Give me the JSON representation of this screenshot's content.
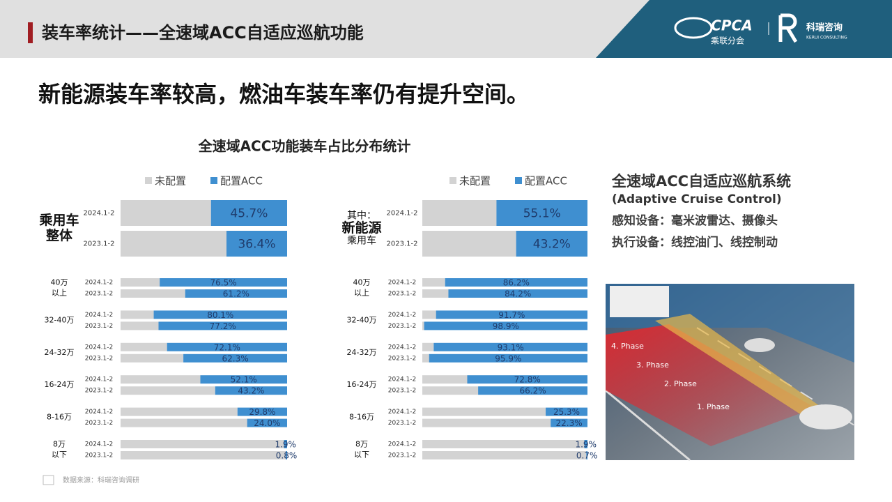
{
  "header": {
    "title": "装车率统计——全速域ACC自适应巡航功能",
    "logo_cpca": "CPCA",
    "logo_cpca_cn": "乘联分会",
    "logo_kerui": "科瑞咨询",
    "logo_kerui_en": "KERUI CONSULTING"
  },
  "headline": "新能源装车率较高，燃油车装车率仍有提升空间。",
  "chart_section_title": "全速域ACC功能装车占比分布统计",
  "chart_data": [
    {
      "type": "bar",
      "orientation": "horizontal",
      "stacked": true,
      "groups": [
        [
          "乘用车",
          "整体"
        ],
        [
          "40万",
          "以上"
        ],
        [
          "32-40万"
        ],
        [
          "24-32万"
        ],
        [
          "16-24万"
        ],
        [
          "8-16万"
        ],
        [
          "8万",
          "以下"
        ]
      ],
      "categories": [
        "2024.1-2",
        "2023.1-2",
        "2024.1-2",
        "2023.1-2",
        "2024.1-2",
        "2023.1-2",
        "2024.1-2",
        "2023.1-2",
        "2024.1-2",
        "2023.1-2",
        "2024.1-2",
        "2023.1-2",
        "2024.1-2",
        "2023.1-2"
      ],
      "series": [
        {
          "name": "未配置",
          "color": "#d3d3d3",
          "values": [
            54.3,
            63.6,
            23.5,
            38.8,
            19.9,
            22.8,
            27.9,
            37.7,
            47.9,
            56.8,
            70.2,
            76.0,
            98.1,
            99.2
          ]
        },
        {
          "name": "配置ACC",
          "color": "#3f8fd0",
          "values": [
            45.7,
            36.4,
            76.5,
            61.2,
            80.1,
            77.2,
            72.1,
            62.3,
            52.1,
            43.2,
            29.8,
            24.0,
            1.9,
            0.8
          ],
          "value_labels": [
            "45.7%",
            "36.4%",
            "76.5%",
            "61.2%",
            "80.1%",
            "77.2%",
            "72.1%",
            "62.3%",
            "52.1%",
            "43.2%",
            "29.8%",
            "24.0%",
            "1.9%",
            "0.8%"
          ]
        }
      ],
      "xlim": [
        0,
        100
      ]
    },
    {
      "type": "bar",
      "orientation": "horizontal",
      "stacked": true,
      "groups": [
        [
          "其中：",
          "新能源",
          "乘用车"
        ],
        [
          "40万",
          "以上"
        ],
        [
          "32-40万"
        ],
        [
          "24-32万"
        ],
        [
          "16-24万"
        ],
        [
          "8-16万"
        ],
        [
          "8万",
          "以下"
        ]
      ],
      "categories": [
        "2024.1-2",
        "2023.1-2",
        "2024.1-2",
        "2023.1-2",
        "2024.1-2",
        "2023.1-2",
        "2024.1-2",
        "2023.1-2",
        "2024.1-2",
        "2023.1-2",
        "2024.1-2",
        "2023.1-2",
        "2024.1-2",
        "2023.1-2"
      ],
      "series": [
        {
          "name": "未配置",
          "color": "#d3d3d3",
          "values": [
            44.9,
            56.8,
            13.8,
            15.8,
            8.3,
            1.1,
            6.9,
            4.1,
            27.2,
            33.8,
            74.7,
            77.7,
            98.1,
            99.3
          ]
        },
        {
          "name": "配置ACC",
          "color": "#3f8fd0",
          "values": [
            55.1,
            43.2,
            86.2,
            84.2,
            91.7,
            98.9,
            93.1,
            95.9,
            72.8,
            66.2,
            25.3,
            22.3,
            1.9,
            0.7
          ],
          "value_labels": [
            "55.1%",
            "43.2%",
            "86.2%",
            "84.2%",
            "91.7%",
            "98.9%",
            "93.1%",
            "95.9%",
            "72.8%",
            "66.2%",
            "25.3%",
            "22.3%",
            "1.9%",
            "0.7%"
          ]
        }
      ],
      "xlim": [
        0,
        100
      ]
    }
  ],
  "acc_panel": {
    "title": "全速域ACC自适应巡航系统",
    "subtitle": "(Adaptive Cruise Control)",
    "lines": [
      "感知设备：毫米波雷达、摄像头",
      "执行设备：线控油门、线控制动"
    ],
    "image_labels": [
      "4. Phase",
      "3. Phase",
      "2. Phase",
      "1. Phase"
    ]
  },
  "footer": {
    "source": "数据来源：科瑞咨询调研"
  }
}
